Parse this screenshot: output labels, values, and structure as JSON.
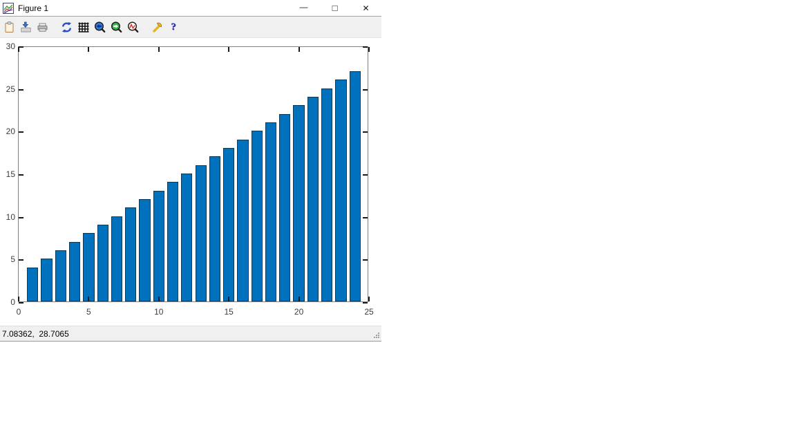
{
  "window": {
    "title": "Figure 1",
    "controls": {
      "minimize_glyph": "—",
      "maximize_glyph": "□",
      "close_glyph": "✕"
    }
  },
  "toolbar": {
    "icons": [
      "clipboard-icon",
      "save-icon",
      "print-icon",
      "rotate-icon",
      "grid-icon",
      "zoom-out-icon",
      "zoom-in-icon",
      "autoscale-icon",
      "tools-icon",
      "help-icon"
    ],
    "help_glyph": "?"
  },
  "statusbar": {
    "coordinates": "7.08362,  28.7065"
  },
  "colors": {
    "bar_face": "#0072bd",
    "bar_edge": "#0e3753",
    "axis_box": "#7f7f7f",
    "tick": "#1a1a1a",
    "chrome_bg": "#f0f0f0"
  },
  "chart_data": {
    "type": "bar",
    "x": [
      1,
      2,
      3,
      4,
      5,
      6,
      7,
      8,
      9,
      10,
      11,
      12,
      13,
      14,
      15,
      16,
      17,
      18,
      19,
      20,
      21,
      22,
      23,
      24
    ],
    "values": [
      4,
      5,
      6,
      7,
      8,
      9,
      10,
      11,
      12,
      13,
      14,
      15,
      16,
      17,
      18,
      19,
      20,
      21,
      22,
      23,
      24,
      25,
      26,
      27
    ],
    "title": "",
    "xlabel": "",
    "ylabel": "",
    "xlim": [
      0,
      25
    ],
    "ylim": [
      0,
      30
    ],
    "xticks": [
      0,
      5,
      10,
      15,
      20,
      25
    ],
    "yticks": [
      0,
      5,
      10,
      15,
      20,
      25,
      30
    ],
    "bar_width": 0.8,
    "grid": false,
    "legend": null,
    "box": true,
    "tick_direction": "in"
  }
}
